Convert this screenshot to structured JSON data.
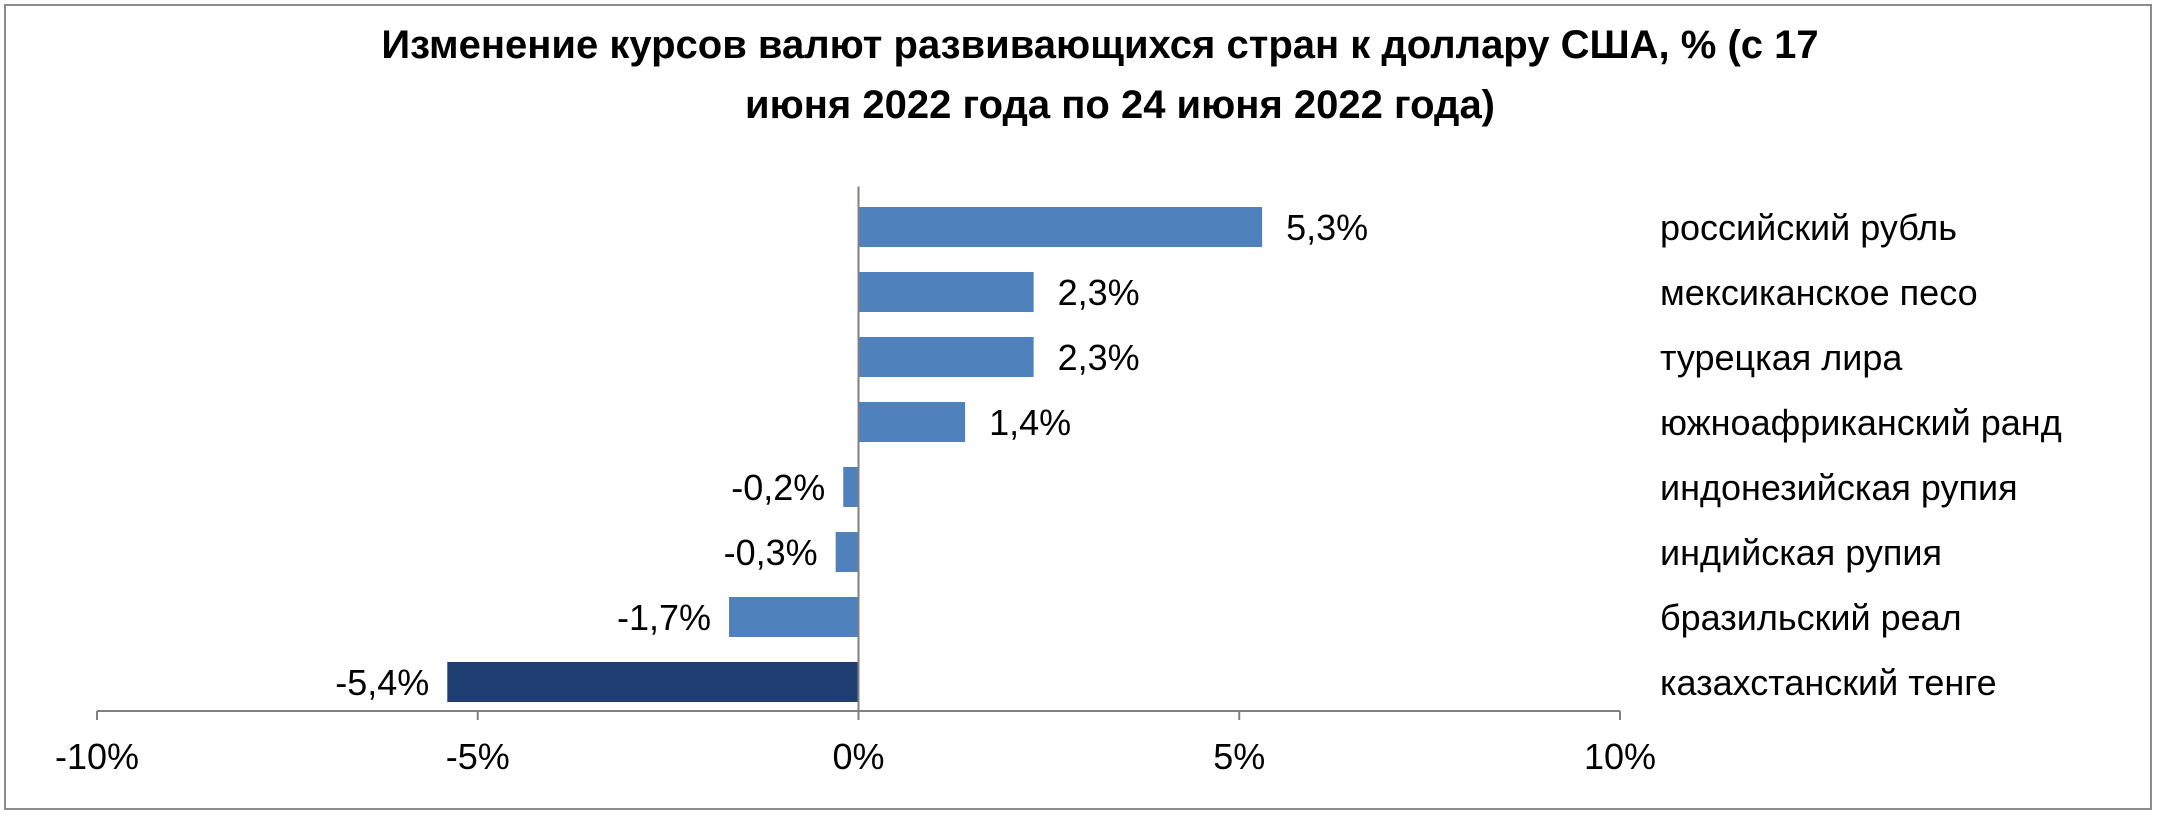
{
  "chart_data": {
    "type": "bar",
    "orientation": "horizontal",
    "title": "Изменение курсов валют развивающихся стран к доллару США, % (с 17 июня 2022 года по 24 июня 2022 года)",
    "title_lines": [
      "Изменение курсов валют развивающихся стран к доллару США, % (с 17",
      "июня 2022 года по 24 июня 2022 года)"
    ],
    "categories": [
      "российский рубль",
      "мексиканское песо",
      "турецкая лира",
      "южноафриканский ранд",
      "индонезийская рупия",
      "индийская рупия",
      "бразильский реал",
      "казахстанский тенге"
    ],
    "values": [
      5.3,
      2.3,
      2.3,
      1.4,
      -0.2,
      -0.3,
      -1.7,
      -5.4
    ],
    "data_labels": [
      "5,3%",
      "2,3%",
      "2,3%",
      "1,4%",
      "-0,2%",
      "-0,3%",
      "-1,7%",
      "-5,4%"
    ],
    "xlim": [
      -10,
      10
    ],
    "x_ticks": [
      -10,
      -5,
      0,
      5,
      10
    ],
    "x_tick_labels": [
      "-10%",
      "-5%",
      "0%",
      "5%",
      "10%"
    ],
    "xlabel": "",
    "ylabel": "",
    "grid": false,
    "legend": "none",
    "bar_color": "#4f81bd",
    "highlight_index": 7,
    "highlight_color": "#1f3f73",
    "axis_color": "#808080"
  }
}
